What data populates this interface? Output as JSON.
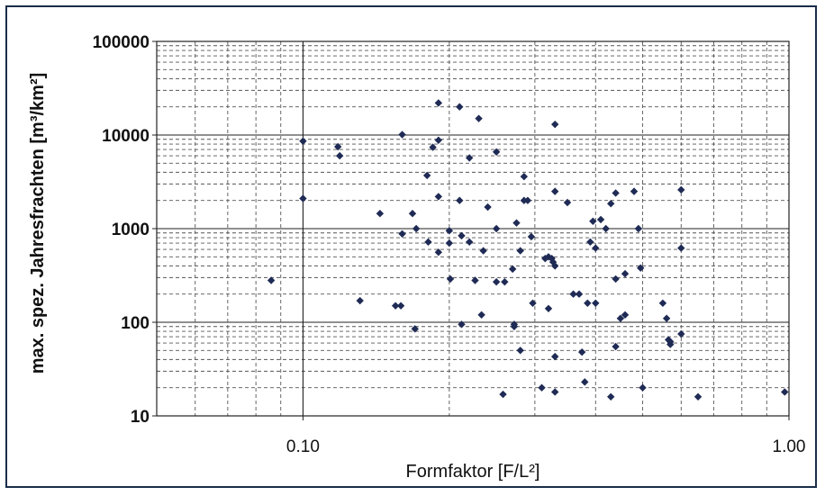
{
  "chart_data": {
    "type": "scatter",
    "x_scale": "log",
    "y_scale": "log",
    "xlim": [
      0.05,
      1.0
    ],
    "ylim": [
      10,
      100000
    ],
    "xlabel": "Formfaktor [F/L²]",
    "ylabel": "max. spez. Jahresfrachten [m³/km²]",
    "x_tick_labels": [
      "0.10",
      "1.00"
    ],
    "y_tick_labels": [
      "10",
      "100",
      "1000",
      "10000",
      "100000"
    ],
    "grid": "major solid, minor dashed",
    "legend": "none",
    "marker": "diamond",
    "marker_color": "#1f2b55",
    "points": [
      [
        0.086,
        280
      ],
      [
        0.1,
        8600
      ],
      [
        0.1,
        2100
      ],
      [
        0.118,
        7500
      ],
      [
        0.119,
        6000
      ],
      [
        0.131,
        170
      ],
      [
        0.144,
        1450
      ],
      [
        0.155,
        150
      ],
      [
        0.159,
        150
      ],
      [
        0.16,
        10100
      ],
      [
        0.16,
        880
      ],
      [
        0.168,
        1450
      ],
      [
        0.17,
        85
      ],
      [
        0.171,
        1000
      ],
      [
        0.18,
        3700
      ],
      [
        0.181,
        720
      ],
      [
        0.185,
        7400
      ],
      [
        0.19,
        8800
      ],
      [
        0.19,
        22000
      ],
      [
        0.19,
        2200
      ],
      [
        0.19,
        560
      ],
      [
        0.2,
        950
      ],
      [
        0.2,
        700
      ],
      [
        0.201,
        290
      ],
      [
        0.21,
        20000
      ],
      [
        0.21,
        2000
      ],
      [
        0.212,
        840
      ],
      [
        0.212,
        95
      ],
      [
        0.22,
        5700
      ],
      [
        0.22,
        720
      ],
      [
        0.226,
        280
      ],
      [
        0.23,
        15000
      ],
      [
        0.233,
        120
      ],
      [
        0.235,
        580
      ],
      [
        0.24,
        1700
      ],
      [
        0.25,
        6600
      ],
      [
        0.25,
        1000
      ],
      [
        0.25,
        270
      ],
      [
        0.258,
        17
      ],
      [
        0.26,
        270
      ],
      [
        0.27,
        370
      ],
      [
        0.272,
        90
      ],
      [
        0.272,
        95
      ],
      [
        0.275,
        1150
      ],
      [
        0.28,
        580
      ],
      [
        0.28,
        50
      ],
      [
        0.285,
        3600
      ],
      [
        0.285,
        2000
      ],
      [
        0.29,
        2000
      ],
      [
        0.295,
        820
      ],
      [
        0.297,
        160
      ],
      [
        0.31,
        20
      ],
      [
        0.315,
        480
      ],
      [
        0.32,
        140
      ],
      [
        0.32,
        500
      ],
      [
        0.325,
        480
      ],
      [
        0.327,
        440
      ],
      [
        0.33,
        13000
      ],
      [
        0.33,
        2500
      ],
      [
        0.33,
        400
      ],
      [
        0.33,
        43
      ],
      [
        0.33,
        18
      ],
      [
        0.35,
        1900
      ],
      [
        0.36,
        200
      ],
      [
        0.37,
        200
      ],
      [
        0.375,
        48
      ],
      [
        0.38,
        23
      ],
      [
        0.385,
        160
      ],
      [
        0.39,
        720
      ],
      [
        0.395,
        1200
      ],
      [
        0.4,
        620
      ],
      [
        0.4,
        160
      ],
      [
        0.41,
        1250
      ],
      [
        0.42,
        1000
      ],
      [
        0.43,
        1850
      ],
      [
        0.43,
        16
      ],
      [
        0.44,
        2400
      ],
      [
        0.44,
        290
      ],
      [
        0.44,
        55
      ],
      [
        0.45,
        110
      ],
      [
        0.46,
        120
      ],
      [
        0.46,
        330
      ],
      [
        0.48,
        2500
      ],
      [
        0.49,
        1000
      ],
      [
        0.495,
        380
      ],
      [
        0.5,
        20
      ],
      [
        0.55,
        160
      ],
      [
        0.56,
        110
      ],
      [
        0.565,
        65
      ],
      [
        0.57,
        62
      ],
      [
        0.57,
        58
      ],
      [
        0.6,
        75
      ],
      [
        0.65,
        16
      ],
      [
        0.6,
        2600
      ],
      [
        0.6,
        620
      ],
      [
        0.98,
        18
      ]
    ]
  }
}
